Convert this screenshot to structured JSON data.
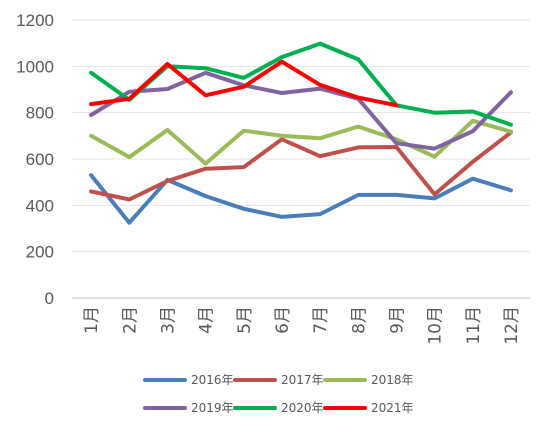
{
  "chart_data": {
    "type": "line",
    "title": "",
    "xlabel": "",
    "ylabel": "",
    "categories": [
      "1月",
      "2月",
      "3月",
      "4月",
      "5月",
      "6月",
      "7月",
      "8月",
      "9月",
      "10月",
      "11月",
      "12月"
    ],
    "ylim": [
      0,
      1200
    ],
    "yticks": [
      0,
      200,
      400,
      600,
      800,
      1000,
      1200
    ],
    "grid": "horizontal",
    "legend_position": "bottom",
    "series": [
      {
        "name": "2016年",
        "color": "#4a7ebb",
        "values": [
          530,
          325,
          510,
          440,
          385,
          350,
          362,
          445,
          445,
          430,
          515,
          465
        ]
      },
      {
        "name": "2017年",
        "color": "#c0504d",
        "values": [
          460,
          425,
          505,
          558,
          565,
          685,
          612,
          650,
          652,
          447,
          588,
          715
        ]
      },
      {
        "name": "2018年",
        "color": "#9bbb59",
        "values": [
          700,
          608,
          725,
          580,
          722,
          700,
          690,
          740,
          685,
          610,
          765,
          718
        ]
      },
      {
        "name": "2019年",
        "color": "#8064a2",
        "values": [
          790,
          890,
          902,
          972,
          918,
          885,
          904,
          860,
          668,
          645,
          720,
          888
        ]
      },
      {
        "name": "2020年",
        "color": "#00b050",
        "values": [
          972,
          855,
          1000,
          992,
          950,
          1040,
          1098,
          1030,
          832,
          800,
          805,
          748
        ]
      },
      {
        "name": "2021年",
        "color": "#ff0000",
        "values": [
          837,
          860,
          1010,
          875,
          912,
          1020,
          920,
          865,
          832,
          null,
          null,
          null
        ]
      }
    ]
  }
}
